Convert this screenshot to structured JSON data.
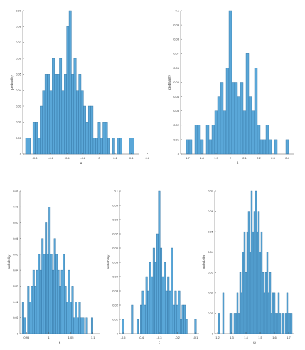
{
  "chart_data": [
    {
      "type": "bar",
      "xlabel": "α",
      "ylabel": "probability",
      "xlim": [
        -0.95,
        0.5
      ],
      "ylim": [
        0,
        0.09
      ],
      "xticks": [
        -0.8,
        -0.6,
        -0.4,
        -0.2,
        0,
        0.2,
        0.4,
        0.6
      ],
      "xtick_labels": [
        "-0.8",
        "-0.6",
        "-0.4",
        "-0.2",
        "0",
        "0.2",
        "0.4",
        "0.6"
      ],
      "yticks": [
        0,
        0.01,
        0.02,
        0.03,
        0.04,
        0.05,
        0.06,
        0.07,
        0.08,
        0.09
      ],
      "ytick_labels": [
        "0",
        "0.01",
        "0.02",
        "0.03",
        "0.04",
        "0.05",
        "0.06",
        "0.07",
        "0.08",
        "0.09"
      ],
      "x": [
        -0.9,
        -0.87,
        -0.84,
        -0.81,
        -0.78,
        -0.75,
        -0.72,
        -0.69,
        -0.66,
        -0.63,
        -0.6,
        -0.57,
        -0.54,
        -0.51,
        -0.48,
        -0.45,
        -0.42,
        -0.39,
        -0.36,
        -0.33,
        -0.3,
        -0.27,
        -0.24,
        -0.21,
        -0.18,
        -0.15,
        -0.12,
        -0.09,
        -0.06,
        -0.03,
        0,
        0.03,
        0.06,
        0.09,
        0.12,
        0.15,
        0.18,
        0.21,
        0.24,
        0.27,
        0.3,
        0.33,
        0.36,
        0.39,
        0.42
      ],
      "values": [
        0.01,
        0.01,
        0,
        0.02,
        0.02,
        0.01,
        0.03,
        0.04,
        0.05,
        0.05,
        0.04,
        0.06,
        0.05,
        0.05,
        0.06,
        0.04,
        0.05,
        0.08,
        0.09,
        0.05,
        0.06,
        0.04,
        0.05,
        0.04,
        0.03,
        0.02,
        0.03,
        0.03,
        0.01,
        0.01,
        0.02,
        0.01,
        0.02,
        0.02,
        0.01,
        0,
        0.01,
        0,
        0.01,
        0.01,
        0,
        0,
        0,
        0.01,
        0.01
      ]
    },
    {
      "type": "bar",
      "xlabel": "β",
      "ylabel": "probability",
      "xlim": [
        1.65,
        2.45
      ],
      "ylim": [
        0,
        0.1
      ],
      "xticks": [
        1.7,
        1.8,
        1.9,
        2.0,
        2.1,
        2.2,
        2.3,
        2.4
      ],
      "xtick_labels": [
        "1.7",
        "1.8",
        "1.9",
        "2",
        "2.1",
        "2.2",
        "2.3",
        "2.4"
      ],
      "yticks": [
        0,
        0.01,
        0.02,
        0.03,
        0.04,
        0.05,
        0.06,
        0.07,
        0.08,
        0.09,
        0.1
      ],
      "ytick_labels": [
        "0",
        "0.01",
        "0.02",
        "0.03",
        "0.04",
        "0.05",
        "0.06",
        "0.07",
        "0.08",
        "0.09",
        "0.1"
      ],
      "x": [
        1.7,
        1.72,
        1.74,
        1.76,
        1.78,
        1.8,
        1.82,
        1.84,
        1.86,
        1.88,
        1.9,
        1.92,
        1.94,
        1.96,
        1.98,
        2.0,
        2.02,
        2.04,
        2.06,
        2.08,
        2.1,
        2.12,
        2.14,
        2.16,
        2.18,
        2.2,
        2.22,
        2.24,
        2.26,
        2.28,
        2.3,
        2.32,
        2.34,
        2.36,
        2.38,
        2.4
      ],
      "values": [
        0.01,
        0.01,
        0,
        0.02,
        0.02,
        0.01,
        0,
        0.02,
        0.01,
        0.02,
        0.03,
        0.04,
        0.05,
        0.03,
        0.06,
        0.1,
        0.05,
        0.05,
        0.04,
        0.05,
        0.03,
        0.07,
        0.04,
        0.03,
        0.06,
        0.02,
        0.01,
        0.01,
        0.02,
        0.01,
        0,
        0.01,
        0,
        0,
        0,
        0.01
      ]
    },
    {
      "type": "bar",
      "xlabel": "κ",
      "ylabel": "probability",
      "xlim": [
        0.935,
        1.115
      ],
      "ylim": [
        0,
        0.09
      ],
      "xticks": [
        0.95,
        1.0,
        1.05,
        1.1
      ],
      "xtick_labels": [
        "0.95",
        "1",
        "1.05",
        "1.1"
      ],
      "yticks": [
        0,
        0.01,
        0.02,
        0.03,
        0.04,
        0.05,
        0.06,
        0.07,
        0.08,
        0.09
      ],
      "ytick_labels": [
        "0",
        "0.01",
        "0.02",
        "0.03",
        "0.04",
        "0.05",
        "0.06",
        "0.07",
        "0.08",
        "0.09"
      ],
      "x": [
        0.942,
        0.946,
        0.95,
        0.954,
        0.958,
        0.962,
        0.966,
        0.97,
        0.974,
        0.978,
        0.982,
        0.986,
        0.99,
        0.994,
        0.998,
        1.002,
        1.006,
        1.01,
        1.014,
        1.018,
        1.022,
        1.026,
        1.03,
        1.034,
        1.038,
        1.042,
        1.046,
        1.05,
        1.054,
        1.058,
        1.062,
        1.066,
        1.07,
        1.074,
        1.078,
        1.082,
        1.086,
        1.09,
        1.094,
        1.098
      ],
      "values": [
        0.02,
        0.01,
        0,
        0.03,
        0.02,
        0.03,
        0.04,
        0.03,
        0.04,
        0.05,
        0.04,
        0.06,
        0.05,
        0.07,
        0.05,
        0.08,
        0.05,
        0.04,
        0.06,
        0.05,
        0.04,
        0.03,
        0.04,
        0.05,
        0.03,
        0.02,
        0.04,
        0.02,
        0.03,
        0.01,
        0.02,
        0.01,
        0.02,
        0.01,
        0.01,
        0,
        0.01,
        0,
        0,
        0.01
      ]
    },
    {
      "type": "bar",
      "xlabel": "ζ",
      "ylabel": "probability",
      "xlim": [
        -0.52,
        -0.08
      ],
      "ylim": [
        0,
        0.1
      ],
      "xticks": [
        -0.5,
        -0.4,
        -0.3,
        -0.2,
        -0.1
      ],
      "xtick_labels": [
        "-0.5",
        "-0.4",
        "-0.3",
        "-0.2",
        "-0.1"
      ],
      "yticks": [
        0,
        0.01,
        0.02,
        0.03,
        0.04,
        0.05,
        0.06,
        0.07,
        0.08,
        0.09,
        0.1
      ],
      "ytick_labels": [
        "0",
        "0.01",
        "0.02",
        "0.03",
        "0.04",
        "0.05",
        "0.06",
        "0.07",
        "0.08",
        "0.09",
        "0.1"
      ],
      "x": [
        -0.5,
        -0.49,
        -0.48,
        -0.47,
        -0.46,
        -0.45,
        -0.44,
        -0.43,
        -0.42,
        -0.41,
        -0.4,
        -0.39,
        -0.38,
        -0.37,
        -0.36,
        -0.35,
        -0.34,
        -0.33,
        -0.32,
        -0.31,
        -0.3,
        -0.29,
        -0.28,
        -0.27,
        -0.26,
        -0.25,
        -0.24,
        -0.23,
        -0.22,
        -0.21,
        -0.2,
        -0.19,
        -0.18,
        -0.17,
        -0.16,
        -0.15,
        -0.14,
        -0.13,
        -0.12,
        -0.11,
        -0.1
      ],
      "values": [
        0.01,
        0,
        0,
        0,
        0,
        0.02,
        0,
        0,
        0.01,
        0,
        0.02,
        0.03,
        0.02,
        0.04,
        0.03,
        0.05,
        0.04,
        0.06,
        0.05,
        0.07,
        0.1,
        0.06,
        0.04,
        0.05,
        0.03,
        0.04,
        0.03,
        0.06,
        0.02,
        0.03,
        0.02,
        0.03,
        0.01,
        0.02,
        0.02,
        0.01,
        0,
        0,
        0,
        0,
        0.01
      ]
    },
    {
      "type": "bar",
      "xlabel": "ω",
      "ylabel": "probability",
      "xlim": [
        1.18,
        1.74
      ],
      "ylim": [
        0,
        0.07
      ],
      "xticks": [
        1.2,
        1.3,
        1.4,
        1.5,
        1.6,
        1.7
      ],
      "xtick_labels": [
        "1.2",
        "1.3",
        "1.4",
        "1.5",
        "1.6",
        "1.7"
      ],
      "yticks": [
        0,
        0.01,
        0.02,
        0.03,
        0.04,
        0.05,
        0.06,
        0.07
      ],
      "ytick_labels": [
        "0",
        "0.01",
        "0.02",
        "0.03",
        "0.04",
        "0.05",
        "0.06",
        "0.07"
      ],
      "x": [
        1.21,
        1.22,
        1.23,
        1.24,
        1.25,
        1.26,
        1.27,
        1.28,
        1.29,
        1.3,
        1.31,
        1.32,
        1.33,
        1.34,
        1.35,
        1.36,
        1.37,
        1.38,
        1.39,
        1.4,
        1.41,
        1.42,
        1.43,
        1.44,
        1.45,
        1.46,
        1.47,
        1.48,
        1.49,
        1.5,
        1.51,
        1.52,
        1.53,
        1.54,
        1.55,
        1.56,
        1.57,
        1.58,
        1.59,
        1.6,
        1.61,
        1.62,
        1.63,
        1.64,
        1.65,
        1.66,
        1.67,
        1.68,
        1.69,
        1.7,
        1.71,
        1.72
      ],
      "values": [
        0.01,
        0,
        0,
        0.02,
        0,
        0,
        0,
        0,
        0.01,
        0.01,
        0,
        0.01,
        0.01,
        0.02,
        0.01,
        0.03,
        0.02,
        0.04,
        0.05,
        0.03,
        0.05,
        0.06,
        0.04,
        0.07,
        0.05,
        0.06,
        0.07,
        0.05,
        0.06,
        0.04,
        0.05,
        0.03,
        0.02,
        0.03,
        0.04,
        0.02,
        0.03,
        0.01,
        0.02,
        0.02,
        0.01,
        0.01,
        0.02,
        0.01,
        0,
        0.01,
        0,
        0.01,
        0.02,
        0.01,
        0.01,
        0.01
      ]
    }
  ]
}
